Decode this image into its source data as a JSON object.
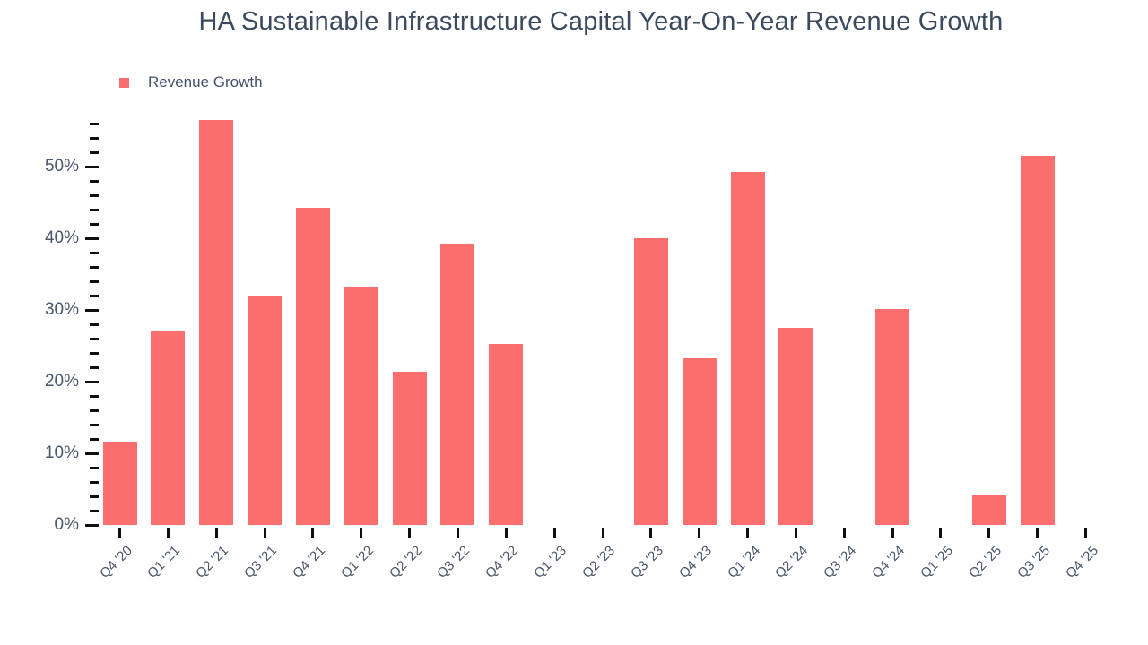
{
  "title": "HA Sustainable Infrastructure Capital Year-On-Year Revenue Growth",
  "legend": {
    "label": "Revenue Growth",
    "swatch_color": "#fb6e6e"
  },
  "colors": {
    "bar": "#fb6e6e",
    "title_text": "#3c4a5e",
    "axis_text": "#4a5669",
    "tick": "#0d0f12",
    "background": "#ffffff"
  },
  "chart_data": {
    "type": "bar",
    "title": "HA Sustainable Infrastructure Capital Year-On-Year Revenue Growth",
    "series_name": "Revenue Growth",
    "unit": "%",
    "categories": [
      "Q4 '20",
      "Q1 '21",
      "Q2 '21",
      "Q3 '21",
      "Q4 '21",
      "Q1 '22",
      "Q2 '22",
      "Q3 '22",
      "Q4 '22",
      "Q1 '23",
      "Q2 '23",
      "Q3 '23",
      "Q4 '23",
      "Q1 '24",
      "Q2 '24",
      "Q3 '24",
      "Q4 '24",
      "Q1 '25",
      "Q2 '25",
      "Q3 '25",
      "Q4 '25"
    ],
    "values": [
      11.6,
      27.0,
      56.5,
      32.0,
      44.3,
      33.3,
      21.4,
      39.2,
      25.3,
      null,
      null,
      40.0,
      23.3,
      49.2,
      27.5,
      null,
      30.1,
      null,
      4.2,
      51.5,
      null
    ],
    "xlabel": "",
    "ylabel": "",
    "ylim": [
      0,
      57.5
    ],
    "y_major_ticks": [
      0,
      10,
      20,
      30,
      40,
      50
    ],
    "y_minor_step": 2,
    "y_minor_max": 56,
    "grid": false,
    "legend_position": "top-left",
    "bar_color": "#fb6e6e"
  }
}
